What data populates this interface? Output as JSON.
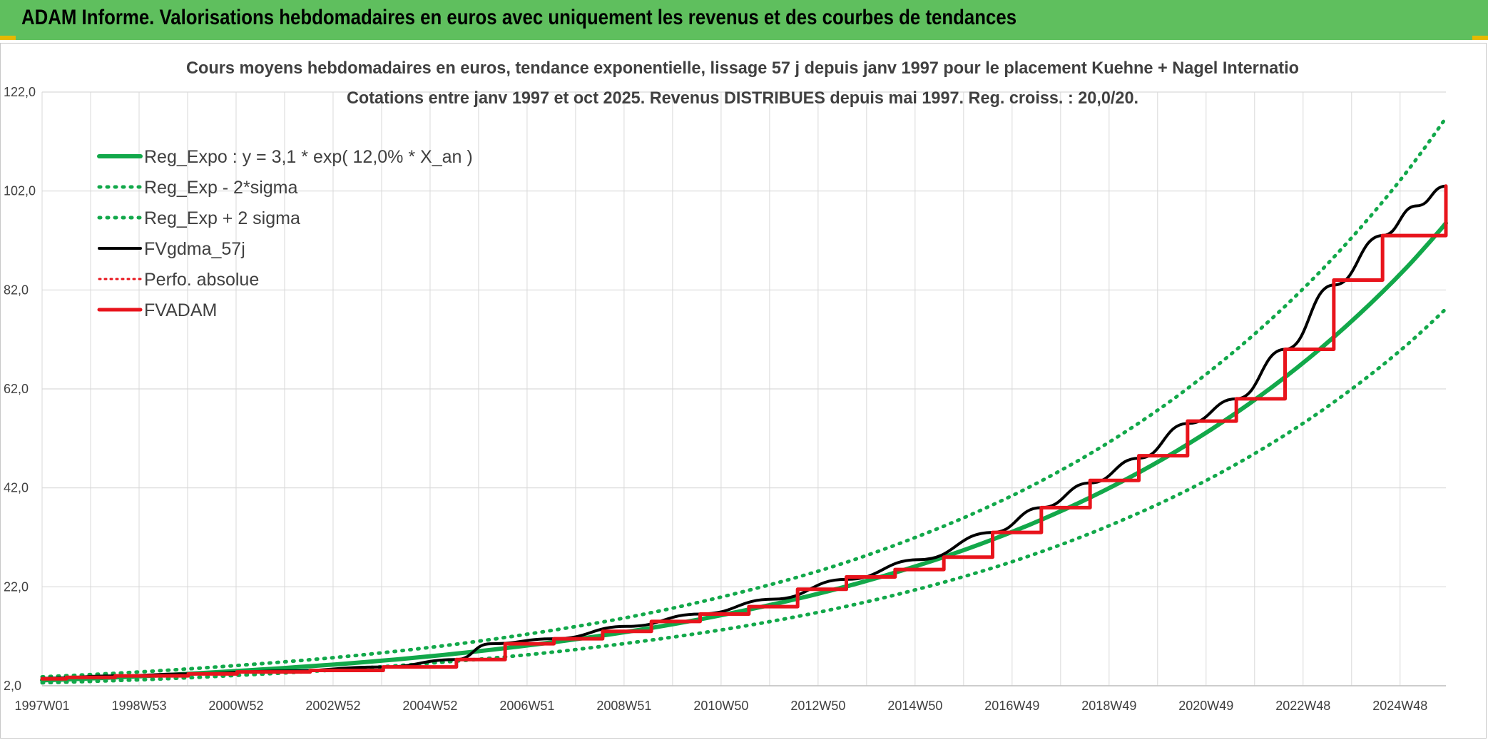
{
  "header": {
    "title": "ADAM Informe. Valorisations hebdomadaires en euros avec uniquement les revenus et des courbes de tendances"
  },
  "chart_data": {
    "type": "line",
    "title": "Cours moyens hebdomadaires en euros, tendance exponentielle, lissage 57 j depuis janv 1997 pour le placement Kuehne + Nagel Internatio",
    "subtitle": "Cotations entre janv 1997 et oct 2025. Revenus DISTRIBUES depuis mai 1997. Reg. croiss. : 20,0/20.",
    "x_range": [
      "1997W01",
      "2025W43"
    ],
    "x_ticks": [
      "1997W01",
      "1998W53",
      "2000W52",
      "2002W52",
      "2004W52",
      "2006W51",
      "2008W51",
      "2010W50",
      "2012W50",
      "2014W50",
      "2016W49",
      "2018W49",
      "2020W49",
      "2022W48",
      "2024W48"
    ],
    "y_ticks": [
      "2,0",
      "22,0",
      "42,0",
      "62,0",
      "82,0",
      "102,0",
      "122,0"
    ],
    "ylim": [
      2,
      122
    ],
    "grid": true,
    "legend_position": "top-left",
    "colors": {
      "green": "#12a84a",
      "black": "#000000",
      "red": "#e8141c"
    },
    "series": [
      {
        "name": "Reg_Expo : y = 3,1 * exp( 12,0% *  X_an )",
        "style": "solid-green",
        "x": [
          1997,
          1999,
          2001,
          2003,
          2005,
          2007,
          2009,
          2011,
          2013,
          2015,
          2017,
          2019,
          2021,
          2023,
          2025,
          2025.8
        ],
        "y": [
          3.1,
          3.9,
          5.0,
          6.3,
          8.0,
          10.2,
          12.9,
          16.4,
          20.8,
          26.4,
          33.5,
          42.5,
          53.9,
          68.3,
          86.6,
          95.5
        ]
      },
      {
        "name": "Reg_Exp - 2*sigma",
        "style": "dotted-green",
        "x": [
          1997,
          1999,
          2001,
          2003,
          2005,
          2007,
          2009,
          2011,
          2013,
          2015,
          2017,
          2019,
          2021,
          2023,
          2025,
          2025.8
        ],
        "y": [
          2.6,
          3.2,
          4.1,
          5.2,
          6.6,
          8.3,
          10.6,
          13.4,
          17.0,
          21.6,
          27.4,
          34.8,
          44.1,
          55.9,
          70.9,
          78.2
        ]
      },
      {
        "name": "Reg_Exp + 2 sigma",
        "style": "dotted-green",
        "x": [
          1997,
          1999,
          2001,
          2003,
          2005,
          2007,
          2009,
          2011,
          2013,
          2015,
          2017,
          2019,
          2021,
          2023,
          2025,
          2025.8
        ],
        "y": [
          3.8,
          4.8,
          6.1,
          7.7,
          9.8,
          12.5,
          15.8,
          20.1,
          25.4,
          32.3,
          40.9,
          51.9,
          65.9,
          83.5,
          105.9,
          116.8
        ]
      },
      {
        "name": "FVgdma_57j",
        "style": "solid-black",
        "x": [
          1997,
          1998.5,
          2000,
          2002,
          2004,
          2005.5,
          2006.2,
          2007.5,
          2009,
          2010.5,
          2012,
          2013.5,
          2015,
          2016.5,
          2017.5,
          2018.5,
          2019.5,
          2020.5,
          2021.5,
          2022.5,
          2023.5,
          2024.5,
          2025.2,
          2025.8
        ],
        "y": [
          3.5,
          4.0,
          4.4,
          5.0,
          5.8,
          7.3,
          10.5,
          11.5,
          14.0,
          16.5,
          19.5,
          23.5,
          27.5,
          33.0,
          38.0,
          43.0,
          48.0,
          55.0,
          60.0,
          70.0,
          83.0,
          93.0,
          99.0,
          103.0
        ]
      },
      {
        "name": "Perfo. absolue",
        "style": "dotted-red",
        "x": [],
        "y": []
      },
      {
        "name": "FVADAM",
        "style": "step-red",
        "x": [
          1997,
          1997.5,
          1998.5,
          2000,
          2001,
          2002.5,
          2004,
          2005.5,
          2006.5,
          2007.5,
          2008.5,
          2009.5,
          2010.5,
          2011.5,
          2012.5,
          2013.5,
          2014.5,
          2015.5,
          2016.5,
          2017.5,
          2018.5,
          2019.5,
          2020.5,
          2021.5,
          2022.5,
          2023.5,
          2024.5,
          2025.8
        ],
        "y": [
          3.4,
          3.7,
          4.0,
          4.4,
          4.8,
          5.1,
          5.8,
          7.3,
          10.5,
          11.5,
          13.0,
          15.0,
          16.5,
          18.0,
          21.5,
          24.0,
          25.5,
          28.0,
          33.0,
          38.0,
          43.5,
          48.5,
          55.5,
          60.0,
          70.0,
          84.0,
          93.0,
          103.0
        ]
      }
    ]
  }
}
